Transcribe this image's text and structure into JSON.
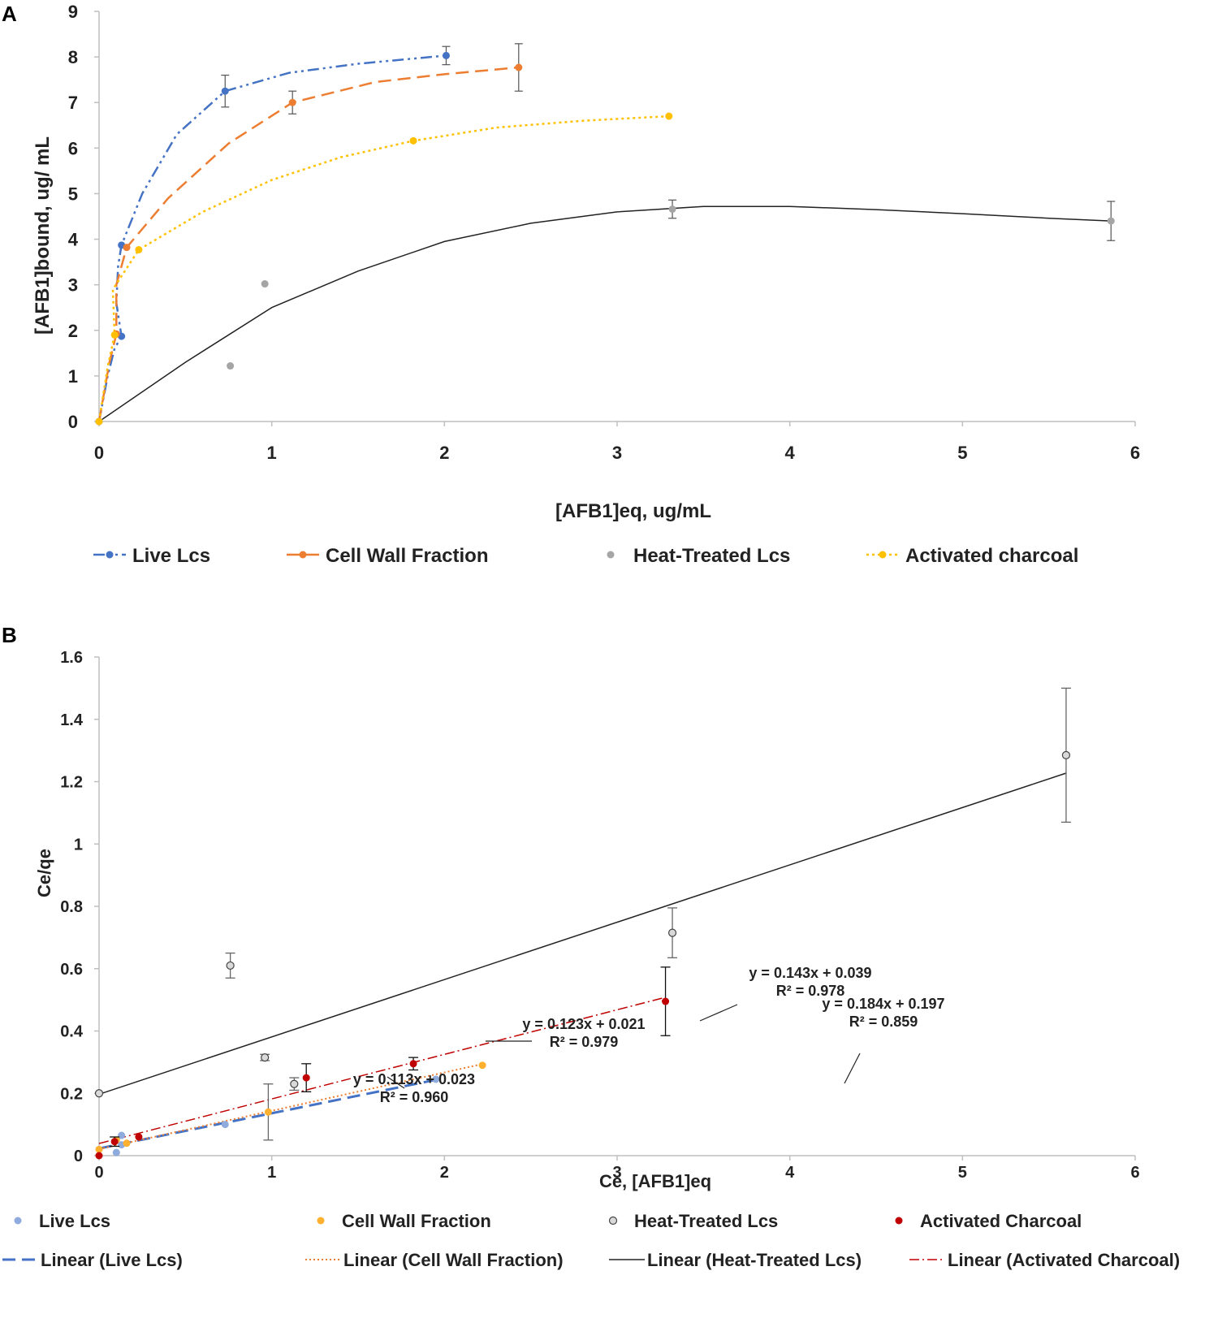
{
  "colors": {
    "live": "#4472C4",
    "cell_wall": "#ED7D31",
    "heat": "#A5A5A5",
    "charcoal": "#FFC000",
    "live_b": "#8FAADC",
    "cell_wall_b": "#FFB02E",
    "charcoal_b": "#C00000",
    "black": "#222222"
  },
  "chart_data": [
    {
      "panel_label": "A",
      "type": "scatter",
      "xlabel": "[AFB1]eq, ug/mL",
      "ylabel": "[AFB1]bound, ug/ mL",
      "xlim": [
        0,
        6
      ],
      "ylim": [
        0,
        9
      ],
      "xticks": [
        "0",
        "1",
        "2",
        "3",
        "4",
        "5",
        "6"
      ],
      "yticks": [
        "0",
        "1",
        "2",
        "3",
        "4",
        "5",
        "6",
        "7",
        "8",
        "9"
      ],
      "legend": [
        "Live Lcs",
        "Cell Wall Fraction",
        "Heat-Treated Lcs",
        "Activated charcoal"
      ],
      "series": [
        {
          "name": "Live Lcs",
          "color_key": "live",
          "dash": "14 5 3 5 3 5",
          "points": [
            [
              0,
              0
            ],
            [
              0.13,
              1.87
            ],
            [
              0.13,
              3.87
            ],
            [
              0.73,
              7.25
            ],
            [
              2.01,
              8.03
            ]
          ],
          "errors": [
            0,
            0,
            0,
            0.35,
            0.2
          ],
          "curve": [
            [
              0,
              0
            ],
            [
              0.05,
              1.0
            ],
            [
              0.09,
              1.6
            ],
            [
              0.13,
              1.87
            ],
            [
              0.1,
              2.6
            ],
            [
              0.11,
              3.4
            ],
            [
              0.13,
              3.87
            ],
            [
              0.25,
              5.0
            ],
            [
              0.45,
              6.3
            ],
            [
              0.73,
              7.25
            ],
            [
              1.1,
              7.65
            ],
            [
              1.5,
              7.85
            ],
            [
              2.01,
              8.03
            ]
          ]
        },
        {
          "name": "Cell Wall Fraction",
          "color_key": "cell_wall",
          "dash": "16 8",
          "points": [
            [
              0,
              0
            ],
            [
              0.1,
              1.92
            ],
            [
              0.16,
              3.82
            ],
            [
              1.12,
              7.0
            ],
            [
              2.43,
              7.77
            ]
          ],
          "errors": [
            0,
            0,
            0,
            0.25,
            0.52
          ],
          "curve": [
            [
              0,
              0
            ],
            [
              0.06,
              1.3
            ],
            [
              0.1,
              1.92
            ],
            [
              0.1,
              3.0
            ],
            [
              0.16,
              3.82
            ],
            [
              0.4,
              4.9
            ],
            [
              0.75,
              6.1
            ],
            [
              1.12,
              7.0
            ],
            [
              1.6,
              7.45
            ],
            [
              2.0,
              7.62
            ],
            [
              2.43,
              7.77
            ]
          ]
        },
        {
          "name": "Heat-Treated Lcs",
          "color_key": "heat",
          "dash": "",
          "points": [
            [
              0,
              0
            ],
            [
              0.76,
              1.22
            ],
            [
              0.96,
              3.02
            ],
            [
              3.32,
              4.66
            ],
            [
              5.86,
              4.4
            ]
          ],
          "errors": [
            0,
            0,
            0,
            0.2,
            0.43
          ],
          "curve": [
            [
              0,
              0
            ],
            [
              0.5,
              1.3
            ],
            [
              1.0,
              2.5
            ],
            [
              1.5,
              3.3
            ],
            [
              2.0,
              3.95
            ],
            [
              2.5,
              4.35
            ],
            [
              3.0,
              4.6
            ],
            [
              3.5,
              4.72
            ],
            [
              4.0,
              4.72
            ],
            [
              4.5,
              4.65
            ],
            [
              5.0,
              4.56
            ],
            [
              5.5,
              4.46
            ],
            [
              5.86,
              4.4
            ]
          ]
        },
        {
          "name": "Activated charcoal",
          "color_key": "charcoal",
          "dash": "3 4",
          "points": [
            [
              0,
              0
            ],
            [
              0.09,
              1.9
            ],
            [
              0.23,
              3.77
            ],
            [
              1.82,
              6.16
            ],
            [
              3.3,
              6.7
            ]
          ],
          "errors": [
            0,
            0,
            0,
            0,
            0
          ],
          "curve": [
            [
              0,
              0
            ],
            [
              0.05,
              1.2
            ],
            [
              0.09,
              1.9
            ],
            [
              0.08,
              2.9
            ],
            [
              0.23,
              3.77
            ],
            [
              0.6,
              4.6
            ],
            [
              1.0,
              5.3
            ],
            [
              1.4,
              5.8
            ],
            [
              1.82,
              6.16
            ],
            [
              2.3,
              6.45
            ],
            [
              2.8,
              6.6
            ],
            [
              3.3,
              6.7
            ]
          ]
        }
      ]
    },
    {
      "panel_label": "B",
      "type": "scatter",
      "xlabel": "Ce, [AFB1]eq",
      "ylabel": "Ce/qe",
      "xlim": [
        0,
        6
      ],
      "ylim": [
        0,
        1.6
      ],
      "xticks": [
        "0",
        "1",
        "2",
        "3",
        "4",
        "5",
        "6"
      ],
      "yticks": [
        "0",
        "0.2",
        "0.4",
        "0.6",
        "0.8",
        "1",
        "1.2",
        "1.4",
        "1.6"
      ],
      "legend_markers": [
        "Live Lcs",
        "Cell Wall Fraction",
        "Heat-Treated Lcs",
        "Activated Charcoal"
      ],
      "legend_lines": [
        "Linear (Live Lcs)",
        "Linear (Cell Wall Fraction)",
        "Linear (Heat-Treated Lcs)",
        "Linear (Activated Charcoal)"
      ],
      "series": [
        {
          "name": "Live Lcs",
          "color_key": "live_b",
          "points": [
            [
              0.1,
              0.01
            ],
            [
              0.13,
              0.065
            ],
            [
              0.13,
              0.035
            ],
            [
              0.73,
              0.1
            ],
            [
              1.95,
              0.245
            ]
          ],
          "errors": [
            0,
            0,
            0,
            0,
            0
          ],
          "fit": {
            "slope": 0.113,
            "intercept": 0.023,
            "x0": 0,
            "x1": 1.95,
            "dash": "16 8",
            "color_key": "live",
            "width": 3
          },
          "equation": "y = 0.113x + 0.023",
          "r2": "R² = 0.960"
        },
        {
          "name": "Cell Wall Fraction",
          "color_key": "cell_wall_b",
          "points": [
            [
              0,
              0.02
            ],
            [
              0.1,
              0.05
            ],
            [
              0.16,
              0.04
            ],
            [
              0.98,
              0.14
            ],
            [
              2.22,
              0.29
            ]
          ],
          "errors": [
            0,
            0,
            0,
            0.09,
            0
          ],
          "fit": {
            "slope": 0.123,
            "intercept": 0.021,
            "x0": 0,
            "x1": 2.22,
            "dash": "2 3",
            "color_key": "cell_wall",
            "width": 2
          },
          "equation": "y = 0.123x + 0.021",
          "r2": "R² = 0.979"
        },
        {
          "name": "Heat-Treated Lcs",
          "color_key": "heat",
          "points": [
            [
              0,
              0.2
            ],
            [
              0.76,
              0.61
            ],
            [
              0.96,
              0.315
            ],
            [
              1.13,
              0.23
            ],
            [
              3.32,
              0.715
            ],
            [
              5.6,
              1.285
            ]
          ],
          "errors": [
            0,
            0.04,
            0.01,
            0.02,
            0.08,
            0.215
          ],
          "fit": {
            "slope": 0.184,
            "intercept": 0.197,
            "x0": 0,
            "x1": 5.6,
            "dash": "",
            "color_key": "black",
            "width": 1.5
          },
          "equation": "y = 0.184x + 0.197",
          "r2": "R² = 0.859"
        },
        {
          "name": "Activated Charcoal",
          "color_key": "charcoal_b",
          "points": [
            [
              0,
              0
            ],
            [
              0.09,
              0.045
            ],
            [
              0.23,
              0.06
            ],
            [
              1.2,
              0.25
            ],
            [
              1.82,
              0.295
            ],
            [
              3.28,
              0.495
            ]
          ],
          "errors": [
            0,
            0.015,
            0,
            0.045,
            0.02,
            0.11
          ],
          "fit": {
            "slope": 0.143,
            "intercept": 0.039,
            "x0": 0,
            "x1": 3.28,
            "dash": "12 4 2 4",
            "color_key": "charcoal_b",
            "width": 1.5
          },
          "equation": "y = 0.143x + 0.039",
          "r2": "R² = 0.978"
        }
      ]
    }
  ]
}
